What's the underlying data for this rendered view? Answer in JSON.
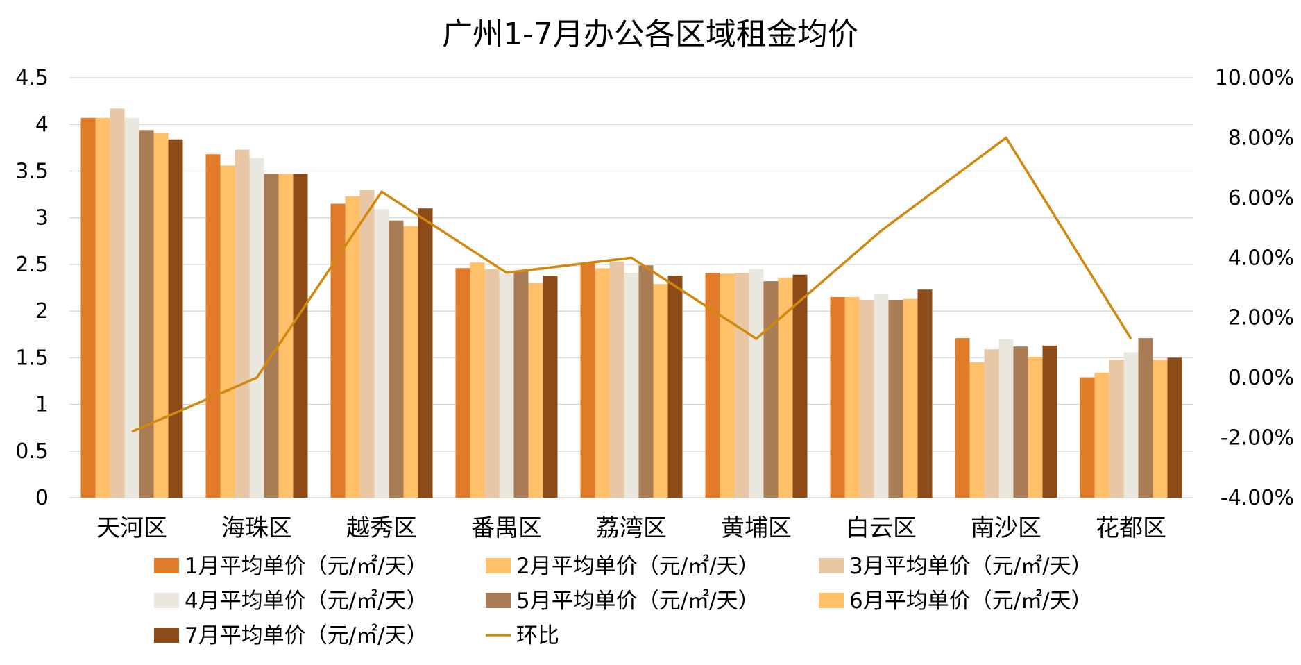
{
  "chart_data": {
    "type": "bar",
    "title": "广州1-7月办公各区域租金均价",
    "categories": [
      "天河区",
      "海珠区",
      "越秀区",
      "番禺区",
      "荔湾区",
      "黄埔区",
      "白云区",
      "南沙区",
      "花都区"
    ],
    "y_left": {
      "ticks": [
        "0",
        "0.5",
        "1",
        "1.5",
        "2",
        "2.5",
        "3",
        "3.5",
        "4",
        "4.5"
      ],
      "ylim": [
        0,
        4.5
      ]
    },
    "y_right": {
      "ticks": [
        "-4.00%",
        "-2.00%",
        "0.00%",
        "2.00%",
        "4.00%",
        "6.00%",
        "8.00%",
        "10.00%"
      ],
      "ylim": [
        -4,
        10
      ]
    },
    "grid": true,
    "legend_position": "bottom",
    "series": [
      {
        "name": "1月平均单价（元/㎡/天）",
        "color": "#E07B2A",
        "values": [
          4.07,
          3.68,
          3.15,
          2.46,
          2.51,
          2.41,
          2.15,
          1.71,
          1.29
        ]
      },
      {
        "name": "2月平均单价（元/㎡/天）",
        "color": "#FFC06A",
        "values": [
          4.07,
          3.56,
          3.23,
          2.52,
          2.46,
          2.4,
          2.15,
          1.45,
          1.34
        ]
      },
      {
        "name": "3月平均单价（元/㎡/天）",
        "color": "#E8C8A4",
        "values": [
          4.17,
          3.73,
          3.3,
          2.45,
          2.53,
          2.41,
          2.12,
          1.59,
          1.48
        ]
      },
      {
        "name": "4月平均单价（元/㎡/天）",
        "color": "#E9E7DE",
        "values": [
          4.07,
          3.64,
          3.09,
          2.4,
          2.41,
          2.45,
          2.18,
          1.7,
          1.56
        ]
      },
      {
        "name": "5月平均单价（元/㎡/天）",
        "color": "#A97C55",
        "values": [
          3.94,
          3.47,
          2.97,
          2.43,
          2.49,
          2.32,
          2.12,
          1.62,
          1.71
        ]
      },
      {
        "name": "6月平均单价（元/㎡/天）",
        "color": "#FFC06A",
        "values": [
          3.91,
          3.47,
          2.91,
          2.3,
          2.29,
          2.36,
          2.13,
          1.51,
          1.48
        ]
      },
      {
        "name": "7月平均单价（元/㎡/天）",
        "color": "#8C4B17",
        "values": [
          3.84,
          3.47,
          3.1,
          2.38,
          2.38,
          2.39,
          2.23,
          1.63,
          1.5
        ]
      }
    ],
    "line_series": {
      "name": "环比",
      "color": "#D0880F",
      "axis": "right",
      "values": [
        -1.8,
        0.0,
        6.2,
        3.5,
        4.0,
        1.3,
        4.9,
        8.0,
        1.3
      ]
    }
  }
}
